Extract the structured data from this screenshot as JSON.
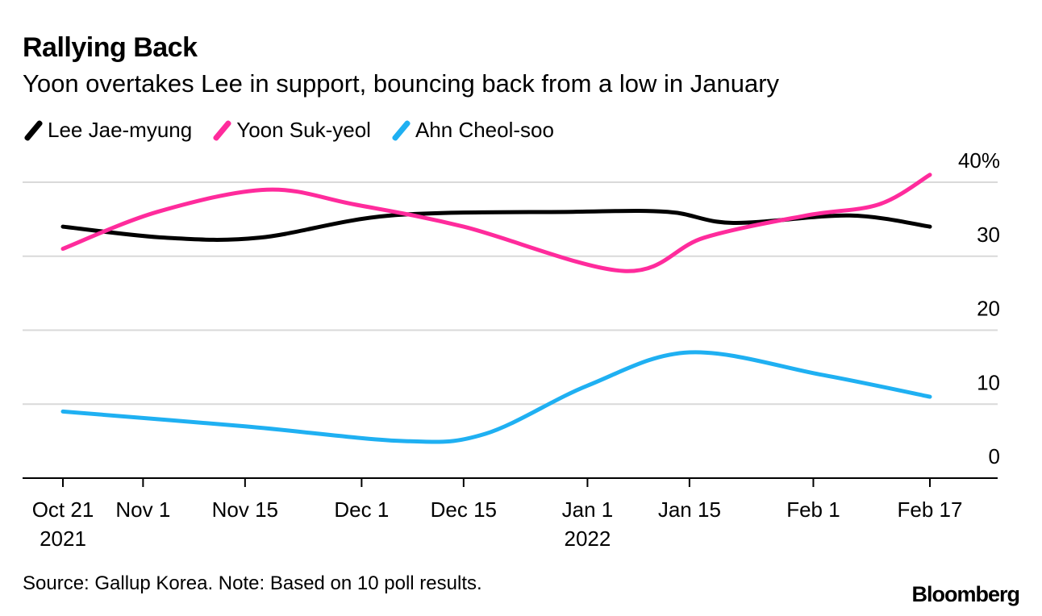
{
  "title": "Rallying Back",
  "subtitle": "Yoon overtakes Lee in support, bouncing back from a low in January",
  "source": "Source: Gallup Korea. Note: Based on 10 poll results.",
  "brand": "Bloomberg",
  "chart_data": {
    "type": "line",
    "title": "Rallying Back",
    "subtitle": "Yoon overtakes Lee in support, bouncing back from a low in January",
    "xlabel": "",
    "ylabel": "",
    "ylim": [
      0,
      40
    ],
    "yticks": [
      {
        "value": 0,
        "label": "0"
      },
      {
        "value": 10,
        "label": "10"
      },
      {
        "value": 20,
        "label": "20"
      },
      {
        "value": 30,
        "label": "30"
      },
      {
        "value": 40,
        "label": "40%"
      }
    ],
    "xticks": [
      {
        "day": 0,
        "label": "Oct 21",
        "sublabel": "2021"
      },
      {
        "day": 11,
        "label": "Nov 1",
        "sublabel": ""
      },
      {
        "day": 25,
        "label": "Nov 15",
        "sublabel": ""
      },
      {
        "day": 41,
        "label": "Dec 1",
        "sublabel": ""
      },
      {
        "day": 55,
        "label": "Dec 15",
        "sublabel": ""
      },
      {
        "day": 72,
        "label": "Jan 1",
        "sublabel": "2022"
      },
      {
        "day": 86,
        "label": "Jan 15",
        "sublabel": ""
      },
      {
        "day": 103,
        "label": "Feb 1",
        "sublabel": ""
      },
      {
        "day": 119,
        "label": "Feb 17",
        "sublabel": ""
      }
    ],
    "x_unit": "days since Oct 21, 2021",
    "xlim": [
      0,
      119
    ],
    "series": [
      {
        "name": "Lee Jae-myung",
        "color": "#000000",
        "points": [
          [
            0,
            34
          ],
          [
            14,
            32.5
          ],
          [
            27,
            32.5
          ],
          [
            45,
            35.5
          ],
          [
            70,
            36
          ],
          [
            83,
            36
          ],
          [
            92,
            34.5
          ],
          [
            108,
            35.5
          ],
          [
            119,
            34
          ]
        ]
      },
      {
        "name": "Yoon Suk-yeol",
        "color": "#ff2b9c",
        "points": [
          [
            0,
            31
          ],
          [
            13,
            36
          ],
          [
            28,
            39
          ],
          [
            40,
            37
          ],
          [
            55,
            34
          ],
          [
            77,
            28
          ],
          [
            88,
            32.5
          ],
          [
            102,
            35.5
          ],
          [
            112,
            37
          ],
          [
            119,
            41
          ]
        ]
      },
      {
        "name": "Ahn Cheol-soo",
        "color": "#1fb0f2",
        "points": [
          [
            0,
            9
          ],
          [
            25,
            7
          ],
          [
            47,
            5
          ],
          [
            58,
            6
          ],
          [
            72,
            12.5
          ],
          [
            86,
            17
          ],
          [
            104,
            14
          ],
          [
            119,
            11
          ]
        ]
      }
    ]
  }
}
